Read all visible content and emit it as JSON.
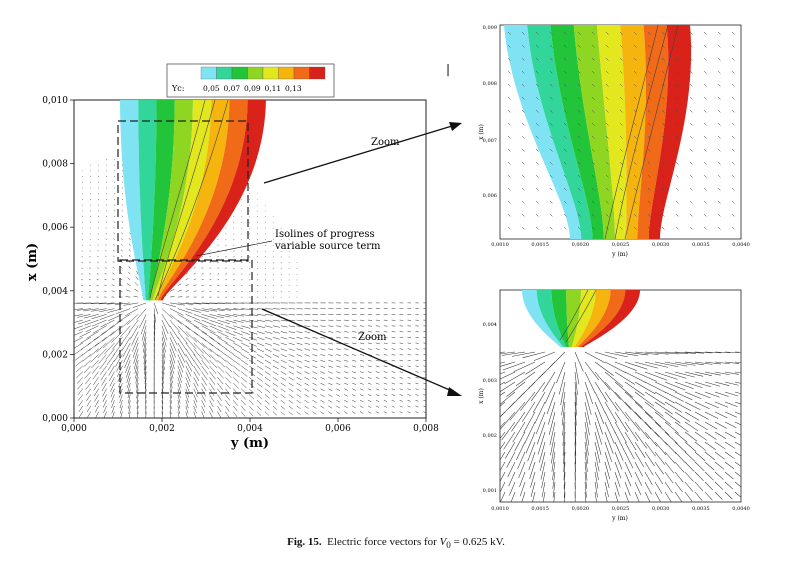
{
  "main_plot": {
    "xlabel": "y (m)",
    "ylabel": "x (m)",
    "xlim": [
      0,
      0.008
    ],
    "ylim": [
      0,
      0.01
    ],
    "x_ticks": [
      "0,000",
      "0,002",
      "0,004",
      "0,006",
      "0,008"
    ],
    "y_ticks": [
      "0,000",
      "0,002",
      "0,004",
      "0,006",
      "0,008",
      "0,010"
    ],
    "annotation": [
      "Isolines of progress",
      "variable source term"
    ]
  },
  "legend": {
    "var": "Yc:",
    "labels": [
      "0,05",
      "0,07",
      "0,09",
      "0,11",
      "0,13"
    ],
    "colors": [
      "#7fe3f3",
      "#33d69a",
      "#22c43a",
      "#8fd622",
      "#e3e71e",
      "#f5b50e",
      "#f06a17",
      "#d9231a"
    ]
  },
  "zoom_label": "Zoom",
  "zoom_top": {
    "xlabel": "y (m)",
    "ylabel": "x (m)",
    "x_ticks": [
      "0,0010",
      "0,0015",
      "0,0020",
      "0,0025",
      "0,0030",
      "0,0035",
      "0,0040"
    ],
    "y_ticks": [
      "0,006",
      "0,007",
      "0,008",
      "0,009"
    ]
  },
  "zoom_bottom": {
    "xlabel": "y (m)",
    "ylabel": "x (m)",
    "x_ticks": [
      "0,0010",
      "0,0015",
      "0,0020",
      "0,0025",
      "0,0030",
      "0,0035",
      "0,0040"
    ],
    "y_ticks": [
      "0,001",
      "0,002",
      "0,003",
      "0,004"
    ]
  },
  "caption": {
    "label": "Fig. 15.",
    "text_before": "Electric force vectors for ",
    "var_main": "V",
    "var_sub": "0",
    "text_after": " = 0.625 kV."
  }
}
